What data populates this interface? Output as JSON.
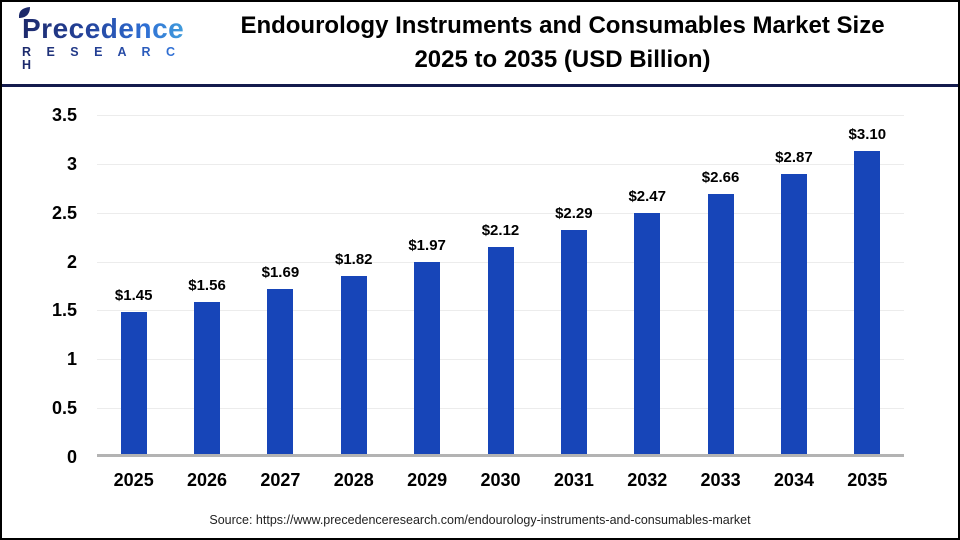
{
  "header": {
    "logo": {
      "name": "Precedence",
      "sub": "R E S E A R C H"
    },
    "title_line1": "Endourology Instruments and Consumables Market Size",
    "title_line2": "2025 to 2035 (USD Billion)"
  },
  "chart_data": {
    "type": "bar",
    "title": "Endourology Instruments and Consumables Market Size 2025 to 2035 (USD Billion)",
    "categories": [
      "2025",
      "2026",
      "2027",
      "2028",
      "2029",
      "2030",
      "2031",
      "2032",
      "2033",
      "2034",
      "2035"
    ],
    "values": [
      1.45,
      1.56,
      1.69,
      1.82,
      1.97,
      2.12,
      2.29,
      2.47,
      2.66,
      2.87,
      3.1
    ],
    "value_labels": [
      "$1.45",
      "$1.56",
      "$1.69",
      "$1.82",
      "$1.97",
      "$2.12",
      "$2.29",
      "$2.47",
      "$2.66",
      "$2.87",
      "$3.10"
    ],
    "xlabel": "",
    "ylabel": "",
    "ylim": [
      0,
      3.5
    ],
    "yticks": [
      "0",
      "0.5",
      "1",
      "1.5",
      "2",
      "2.5",
      "3",
      "3.5"
    ],
    "grid": true,
    "legend": "none"
  },
  "footer": {
    "source": "Source: https://www.precedenceresearch.com/endourology-instruments-and-consumables-market"
  },
  "colors": {
    "bar": "#1745b8",
    "divider": "#141b4d",
    "grid": "#ececec",
    "axis": "#b3b3b3",
    "logo_navy": "#1d2a6b",
    "logo_blue": "#3c8ede"
  }
}
